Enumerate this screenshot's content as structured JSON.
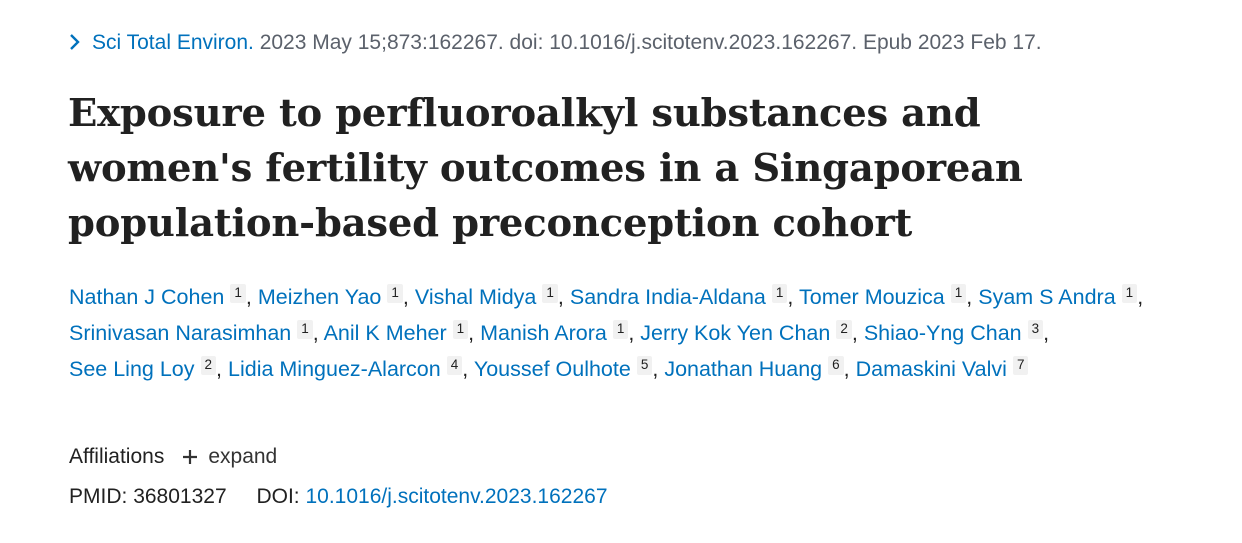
{
  "citation": {
    "journal": "Sci Total Environ.",
    "details": " 2023 May 15;873:162267. doi: 10.1016/j.scitotenv.2023.162267. Epub 2023 Feb 17."
  },
  "title": "Exposure to perfluoroalkyl substances and women's fertility outcomes in a Singaporean population-based preconception cohort",
  "authors": [
    {
      "name": "Nathan J Cohen",
      "aff": "1"
    },
    {
      "name": "Meizhen Yao",
      "aff": "1"
    },
    {
      "name": "Vishal Midya",
      "aff": "1"
    },
    {
      "name": "Sandra India-Aldana",
      "aff": "1"
    },
    {
      "name": "Tomer Mouzica",
      "aff": "1"
    },
    {
      "name": "Syam S Andra",
      "aff": "1"
    },
    {
      "name": "Srinivasan Narasimhan",
      "aff": "1"
    },
    {
      "name": "Anil K Meher",
      "aff": "1"
    },
    {
      "name": "Manish Arora",
      "aff": "1"
    },
    {
      "name": "Jerry Kok Yen Chan",
      "aff": "2"
    },
    {
      "name": "Shiao-Yng Chan",
      "aff": "3"
    },
    {
      "name": "See Ling Loy",
      "aff": "2"
    },
    {
      "name": "Lidia Minguez-Alarcon",
      "aff": "4"
    },
    {
      "name": "Youssef Oulhote",
      "aff": "5"
    },
    {
      "name": "Jonathan Huang",
      "aff": "6"
    },
    {
      "name": "Damaskini Valvi",
      "aff": "7"
    }
  ],
  "affiliations": {
    "label": "Affiliations",
    "expand_label": "expand"
  },
  "ids": {
    "pmid_label": "PMID:",
    "pmid": "36801327",
    "doi_label": "DOI:",
    "doi": "10.1016/j.scitotenv.2023.162267"
  },
  "colors": {
    "link": "#0071bc",
    "text": "#212121",
    "muted": "#5b616b"
  },
  "icons": {
    "citation": "chevron-right-icon",
    "expand": "plus-icon"
  }
}
